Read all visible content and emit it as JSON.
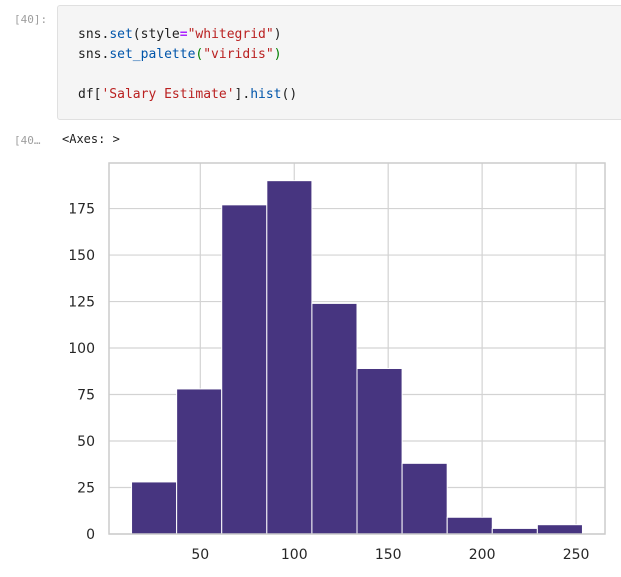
{
  "cell": {
    "input_prompt": "[40]:",
    "output_prompt": "[40…",
    "code": {
      "line1": {
        "obj": "sns",
        "dot": ".",
        "fn": "set",
        "open": "(",
        "kw": "style",
        "eq": "=",
        "str": "\"whitegrid\"",
        "close": ")"
      },
      "line2": {
        "obj": "sns",
        "dot": ".",
        "fn": "set_palette",
        "open": "(",
        "str": "\"viridis\"",
        "close": ")"
      },
      "line3": {
        "obj": "df",
        "open_br": "[",
        "str": "'Salary Estimate'",
        "close_br": "]",
        "dot": ".",
        "fn": "hist",
        "call": "()"
      }
    },
    "output_text": "<Axes: >"
  },
  "colors": {
    "bar": "#473580",
    "grid": "#d3d3d3",
    "axes_edge": "#cccccc"
  },
  "chart_data": {
    "type": "bar",
    "subtype": "histogram",
    "bins": [
      {
        "x0": 13.4,
        "x1": 37.4,
        "value": 28
      },
      {
        "x0": 37.4,
        "x1": 61.4,
        "value": 78
      },
      {
        "x0": 61.4,
        "x1": 85.4,
        "value": 177
      },
      {
        "x0": 85.4,
        "x1": 109.4,
        "value": 190
      },
      {
        "x0": 109.4,
        "x1": 133.4,
        "value": 124
      },
      {
        "x0": 133.4,
        "x1": 157.4,
        "value": 89
      },
      {
        "x0": 157.4,
        "x1": 181.4,
        "value": 38
      },
      {
        "x0": 181.4,
        "x1": 205.4,
        "value": 9
      },
      {
        "x0": 205.4,
        "x1": 229.4,
        "value": 3
      },
      {
        "x0": 229.4,
        "x1": 253.4,
        "value": 5
      }
    ],
    "xlim": [
      1.4,
      265.4
    ],
    "ylim": [
      0,
      199.5
    ],
    "x_ticks": [
      50,
      100,
      150,
      200,
      250
    ],
    "y_ticks": [
      0,
      25,
      50,
      75,
      100,
      125,
      150,
      175
    ],
    "title": "",
    "xlabel": "",
    "ylabel": "",
    "grid": true,
    "legend": "none"
  }
}
